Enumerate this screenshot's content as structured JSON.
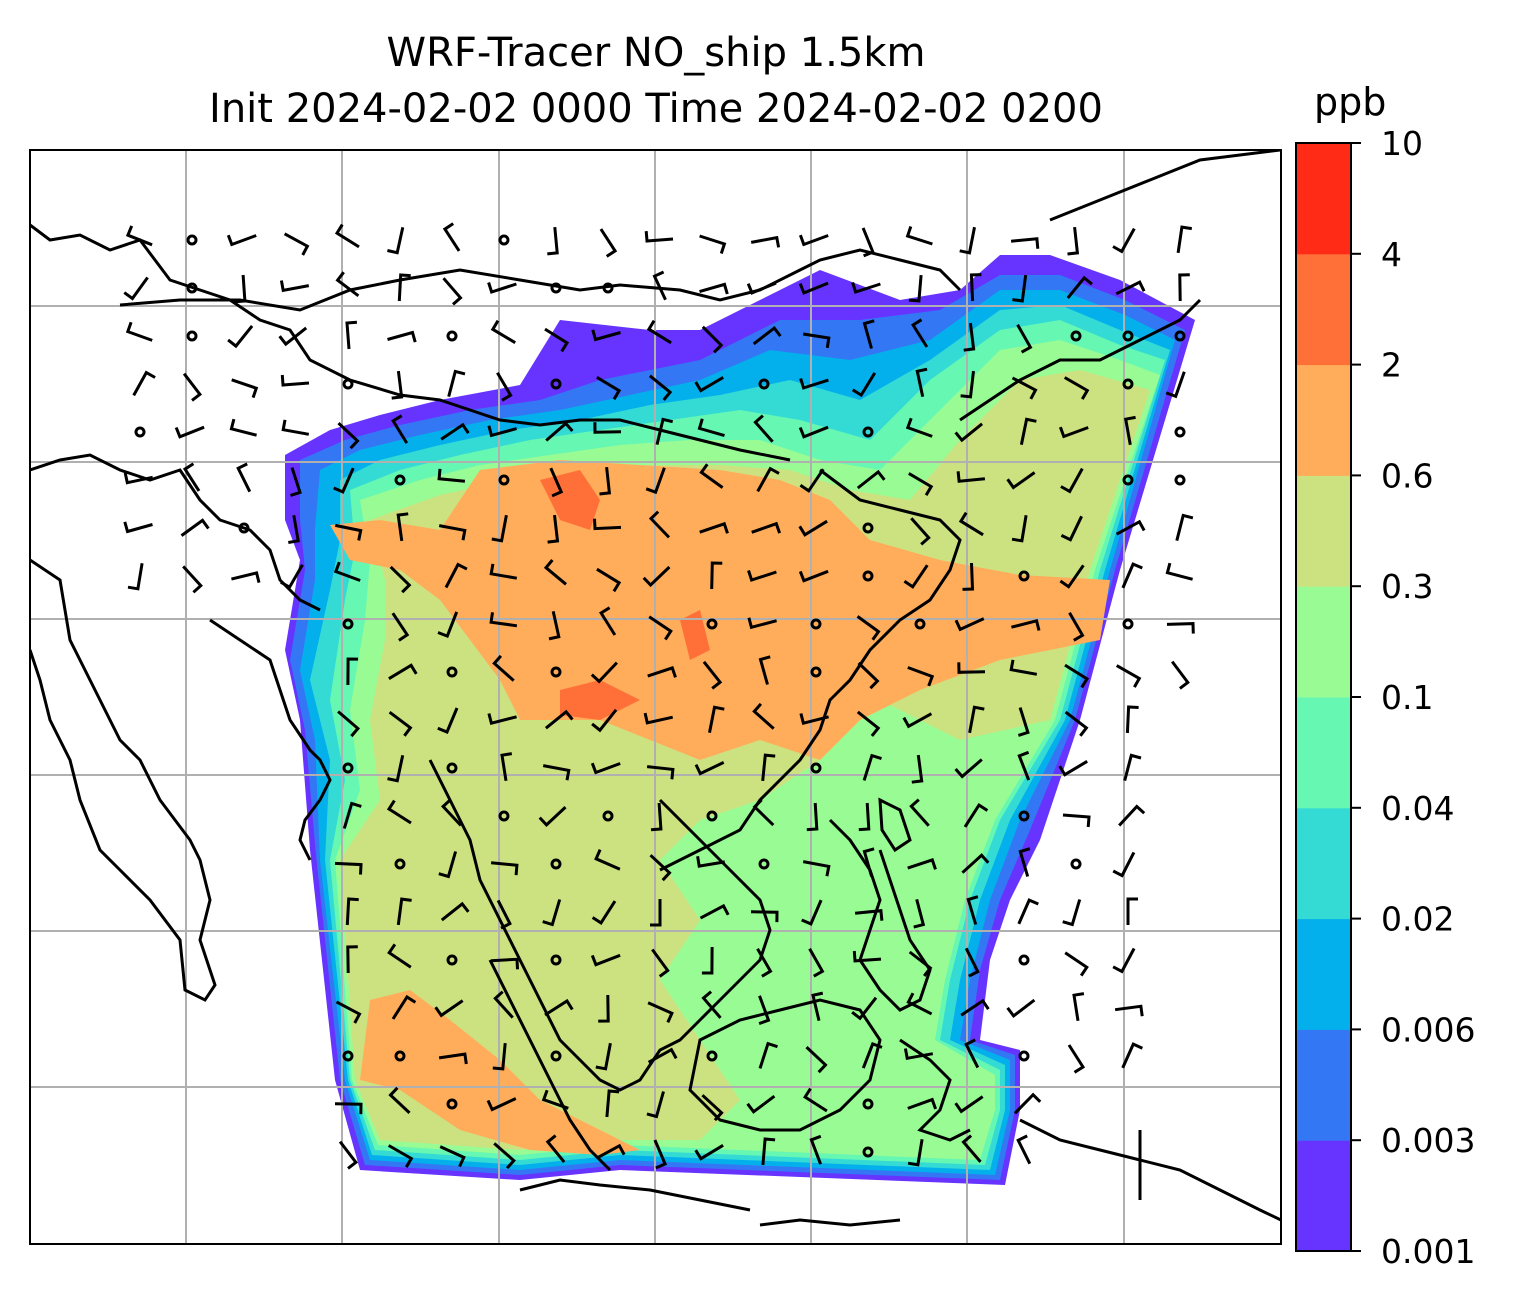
{
  "title_line1": "WRF-Tracer NO_ship 1.5km",
  "title_line2": "Init 2024-02-02 0000 Time 2024-02-02 0200",
  "colorbar": {
    "unit": "ppb",
    "ticks": [
      "0.001",
      "0.003",
      "0.006",
      "0.02",
      "0.04",
      "0.1",
      "0.3",
      "0.6",
      "2",
      "4",
      "10"
    ],
    "colors": [
      "#6633ff",
      "#3377f5",
      "#04b0eb",
      "#33dbd4",
      "#66f7b3",
      "#99fb94",
      "#cce281",
      "#ffad5b",
      "#ff7038",
      "#ff2b17"
    ]
  },
  "map": {
    "coastline_color": "#000000",
    "gridline_color": "#b0b0b0",
    "wind_barb_color": "#000000"
  }
}
